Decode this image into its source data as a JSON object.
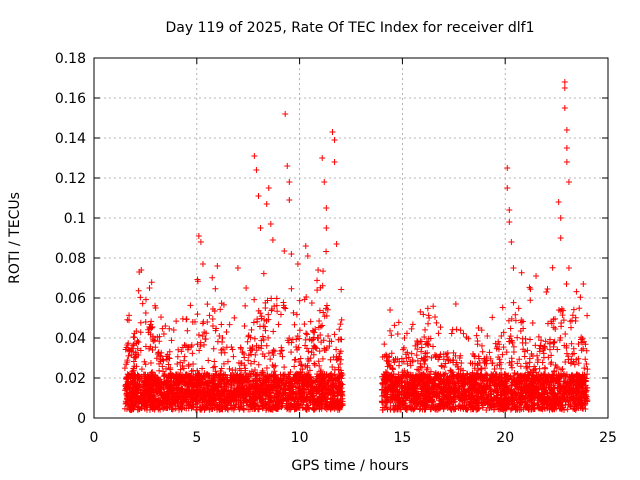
{
  "chart_data": {
    "type": "scatter",
    "title": "Day 119 of 2025, Rate Of TEC Index for receiver dlf1",
    "xlabel": "GPS time / hours",
    "ylabel": "ROTI / TECUs",
    "xlim": [
      0,
      25
    ],
    "ylim": [
      0,
      0.18
    ],
    "xticks": [
      0,
      5,
      10,
      15,
      20,
      25
    ],
    "xtick_labels": [
      "0",
      "5",
      "10",
      "15",
      "20",
      "25"
    ],
    "yticks": [
      0,
      0.02,
      0.04,
      0.06,
      0.08,
      0.1,
      0.12,
      0.14,
      0.16,
      0.18
    ],
    "ytick_labels": [
      "0",
      "0.02",
      "0.04",
      "0.06",
      "0.08",
      "0.1",
      "0.12",
      "0.14",
      "0.16",
      "0.18"
    ],
    "grid": true,
    "marker": "plus",
    "color": "#ff0000",
    "series": [
      {
        "name": "ROTI",
        "segments": [
          {
            "x_start": 1.5,
            "x_end": 12.1
          },
          {
            "x_start": 14.0,
            "x_end": 24.0
          }
        ],
        "points": [
          {
            "x": 2.2,
            "y": 0.073
          },
          {
            "x": 2.3,
            "y": 0.074
          },
          {
            "x": 2.7,
            "y": 0.065
          },
          {
            "x": 3.0,
            "y": 0.055
          },
          {
            "x": 3.4,
            "y": 0.042
          },
          {
            "x": 5.1,
            "y": 0.091
          },
          {
            "x": 5.2,
            "y": 0.088
          },
          {
            "x": 5.3,
            "y": 0.077
          },
          {
            "x": 6.0,
            "y": 0.076
          },
          {
            "x": 7.0,
            "y": 0.075
          },
          {
            "x": 7.4,
            "y": 0.065
          },
          {
            "x": 7.8,
            "y": 0.131
          },
          {
            "x": 7.9,
            "y": 0.124
          },
          {
            "x": 8.0,
            "y": 0.111
          },
          {
            "x": 8.1,
            "y": 0.095
          },
          {
            "x": 8.4,
            "y": 0.107
          },
          {
            "x": 8.5,
            "y": 0.115
          },
          {
            "x": 8.6,
            "y": 0.097
          },
          {
            "x": 8.7,
            "y": 0.089
          },
          {
            "x": 9.3,
            "y": 0.152
          },
          {
            "x": 9.4,
            "y": 0.126
          },
          {
            "x": 9.5,
            "y": 0.118
          },
          {
            "x": 9.5,
            "y": 0.109
          },
          {
            "x": 9.6,
            "y": 0.082
          },
          {
            "x": 10.3,
            "y": 0.086
          },
          {
            "x": 10.4,
            "y": 0.081
          },
          {
            "x": 10.9,
            "y": 0.074
          },
          {
            "x": 11.1,
            "y": 0.13
          },
          {
            "x": 11.2,
            "y": 0.118
          },
          {
            "x": 11.3,
            "y": 0.105
          },
          {
            "x": 11.3,
            "y": 0.095
          },
          {
            "x": 11.6,
            "y": 0.143
          },
          {
            "x": 11.7,
            "y": 0.139
          },
          {
            "x": 11.7,
            "y": 0.128
          },
          {
            "x": 11.8,
            "y": 0.087
          },
          {
            "x": 14.4,
            "y": 0.054
          },
          {
            "x": 15.1,
            "y": 0.04
          },
          {
            "x": 16.3,
            "y": 0.05
          },
          {
            "x": 17.6,
            "y": 0.057
          },
          {
            "x": 18.7,
            "y": 0.045
          },
          {
            "x": 20.1,
            "y": 0.125
          },
          {
            "x": 20.1,
            "y": 0.115
          },
          {
            "x": 20.2,
            "y": 0.104
          },
          {
            "x": 20.2,
            "y": 0.098
          },
          {
            "x": 20.3,
            "y": 0.088
          },
          {
            "x": 20.4,
            "y": 0.075
          },
          {
            "x": 21.5,
            "y": 0.071
          },
          {
            "x": 22.0,
            "y": 0.063
          },
          {
            "x": 22.6,
            "y": 0.108
          },
          {
            "x": 22.7,
            "y": 0.1
          },
          {
            "x": 22.7,
            "y": 0.09
          },
          {
            "x": 22.9,
            "y": 0.168
          },
          {
            "x": 22.9,
            "y": 0.165
          },
          {
            "x": 22.9,
            "y": 0.155
          },
          {
            "x": 23.0,
            "y": 0.144
          },
          {
            "x": 23.0,
            "y": 0.135
          },
          {
            "x": 23.0,
            "y": 0.128
          },
          {
            "x": 23.1,
            "y": 0.118
          },
          {
            "x": 23.1,
            "y": 0.075
          },
          {
            "x": 23.8,
            "y": 0.067
          }
        ]
      }
    ]
  }
}
